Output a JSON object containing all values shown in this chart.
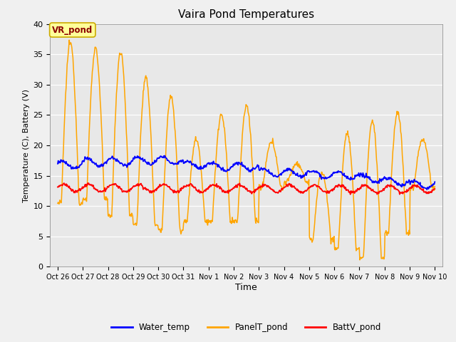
{
  "title": "Vaira Pond Temperatures",
  "xlabel": "Time",
  "ylabel": "Temperature (C), Battery (V)",
  "ylim": [
    0,
    40
  ],
  "yticks": [
    0,
    5,
    10,
    15,
    20,
    25,
    30,
    35,
    40
  ],
  "x_tick_labels": [
    "Oct 26",
    "Oct 27",
    "Oct 28",
    "Oct 29",
    "Oct 30",
    "Oct 31",
    "Nov 1",
    "Nov 2",
    "Nov 3",
    "Nov 4",
    "Nov 5",
    "Nov 6",
    "Nov 7",
    "Nov 8",
    "Nov 9",
    "Nov 10"
  ],
  "legend_labels": [
    "Water_temp",
    "PanelT_pond",
    "BattV_pond"
  ],
  "water_color": "#0000ff",
  "panel_color": "#ffa500",
  "batt_color": "#ff0000",
  "plot_bg_color": "#e8e8e8",
  "fig_bg_color": "#f0f0f0",
  "annotation_text": "VR_pond",
  "annotation_bg": "#ffff99",
  "annotation_border": "#ccaa00",
  "panel_peaks": [
    37,
    36,
    35.5,
    31,
    28,
    21,
    25,
    26.5,
    20.5,
    17,
    15.5,
    22,
    24,
    25.5,
    21
  ],
  "panel_troughs": [
    10.5,
    11,
    8.5,
    7,
    6,
    7.5,
    7.5,
    7.5,
    13,
    14,
    4.5,
    3,
    1.5,
    5.5,
    13
  ],
  "water_levels": [
    16.8,
    17.2,
    17.3,
    17.5,
    17.5,
    16.8,
    16.5,
    16.5,
    15.5,
    15.5,
    15.2,
    15.0,
    14.5,
    14.0,
    13.5
  ],
  "batt_base": 13.0,
  "batt_decline": 0.015,
  "n_days": 15,
  "hours_per_day": 48
}
